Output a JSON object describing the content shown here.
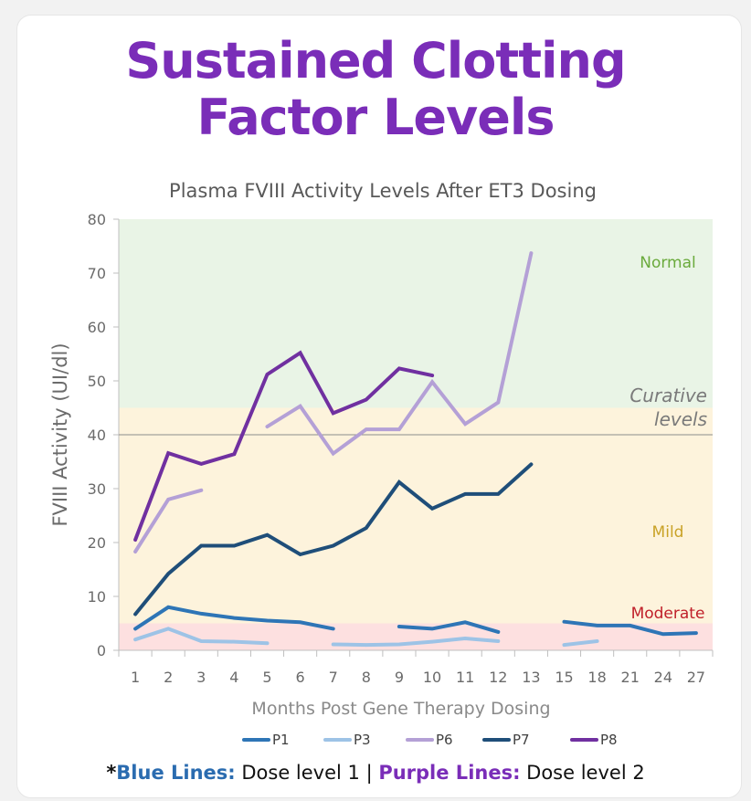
{
  "headline": {
    "line1": "Sustained Clotting",
    "line2": "Factor Levels"
  },
  "footnote": {
    "star": "*",
    "blue_label": "Blue Lines:",
    "blue_text": " Dose level 1 | ",
    "purple_label": "Purple Lines:",
    "purple_text": " Dose level 2"
  },
  "colors": {
    "headline": "#7a2db8",
    "normal_zone": "#e9f4e6",
    "mild_zone": "#fdf3dc",
    "moderate_zone": "#fde0e0",
    "normal_label": "#6aaa3c",
    "mild_label": "#c9a227",
    "moderate_label": "#c0202a"
  },
  "chart_data": {
    "type": "line",
    "title": "Plasma FVIII Activity Levels After ET3 Dosing",
    "xlabel": "Months Post Gene Therapy Dosing",
    "ylabel": "FVIII Activity (UI/dl)",
    "ylim": [
      0,
      80
    ],
    "yticks": [
      "0",
      "10",
      "20",
      "30",
      "40",
      "50",
      "60",
      "70",
      "80"
    ],
    "categories": [
      "1",
      "2",
      "3",
      "4",
      "5",
      "6",
      "7",
      "8",
      "9",
      "10",
      "11",
      "12",
      "13",
      "15",
      "18",
      "21",
      "24",
      "27"
    ],
    "zones": [
      {
        "name": "Normal",
        "from": 45,
        "to": 80,
        "color": "#e9f4e6",
        "label_color": "#6aaa3c"
      },
      {
        "name": "Mild",
        "from": 5,
        "to": 45,
        "color": "#fdf3dc",
        "label_color": "#c9a227"
      },
      {
        "name": "Moderate",
        "from": 0,
        "to": 5,
        "color": "#fde0e0",
        "label_color": "#c0202a"
      }
    ],
    "reference_line": {
      "value": 40,
      "label_line1": "Curative",
      "label_line2": "levels"
    },
    "series": [
      {
        "name": "P1",
        "color": "#2e75b6",
        "values": [
          4,
          8,
          6.8,
          6,
          5.5,
          5.2,
          4,
          null,
          4.4,
          4,
          5.2,
          3.4,
          null,
          5.3,
          4.6,
          4.6,
          3,
          3.2
        ]
      },
      {
        "name": "P3",
        "color": "#9dc3e6",
        "values": [
          2,
          4,
          1.7,
          1.6,
          1.3,
          null,
          1.1,
          1,
          1.1,
          1.6,
          2.2,
          1.7,
          null,
          1,
          1.7,
          null,
          null,
          null
        ]
      },
      {
        "name": "P6",
        "color": "#b4a0d6",
        "values": [
          18.3,
          28,
          29.7,
          null,
          41.5,
          45.3,
          36.5,
          41,
          41,
          49.8,
          42,
          46,
          73.7,
          null,
          null,
          null,
          null,
          null
        ]
      },
      {
        "name": "P7",
        "color": "#1f4e79",
        "values": [
          6.7,
          14.2,
          19.4,
          19.4,
          21.4,
          17.8,
          19.4,
          22.7,
          31.2,
          26.3,
          29,
          29,
          34.5,
          null,
          null,
          null,
          null,
          null
        ]
      },
      {
        "name": "P8",
        "color": "#7030a0",
        "values": [
          20.5,
          36.6,
          34.6,
          36.4,
          51.2,
          55.2,
          44,
          46.5,
          52.3,
          51,
          null,
          null,
          null,
          null,
          null,
          null,
          null,
          null
        ]
      }
    ]
  }
}
